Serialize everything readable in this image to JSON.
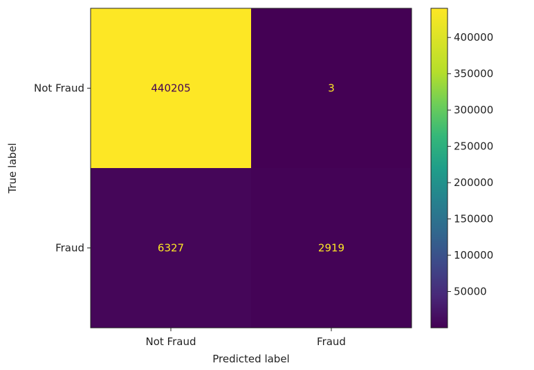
{
  "chart_data": {
    "type": "heatmap",
    "title": "",
    "xlabel": "Predicted label",
    "ylabel": "True label",
    "x_categories": [
      "Not Fraud",
      "Fraud"
    ],
    "y_categories": [
      "Not Fraud",
      "Fraud"
    ],
    "matrix": [
      [
        440205,
        3
      ],
      [
        6327,
        2919
      ]
    ],
    "colorbar": {
      "colormap": "viridis",
      "min": 3,
      "max": 440205,
      "ticks": [
        50000,
        100000,
        150000,
        200000,
        250000,
        300000,
        350000,
        400000
      ]
    },
    "grid": false,
    "text_color_on_dark": "#fde725",
    "text_color_on_light": "#440154"
  }
}
